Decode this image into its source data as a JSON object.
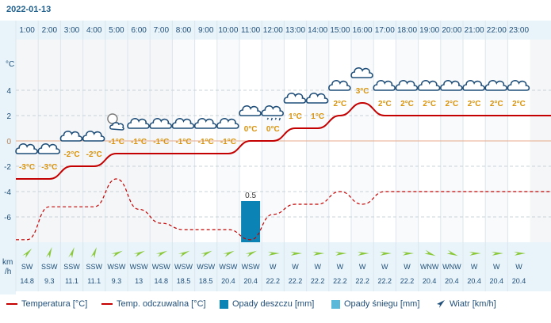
{
  "date": "2022-01-13",
  "y_unit": "°C",
  "wind_unit_top": "km",
  "wind_unit_bottom": "/h",
  "colors": {
    "temperature": "#c40000",
    "rain": "#0b84b5",
    "snow": "#5bb8d9",
    "wind_arrow": "#8cc83c",
    "header_bg": "#e8f4fa",
    "axis_text": "#1f4e79",
    "label_orange": "#d9930b"
  },
  "legend": {
    "temperature": "Temperatura [°C]",
    "feels_like": "Temp. odczuwalna [°C]",
    "rain": "Opady deszczu [mm]",
    "snow": "Opady śniegu [mm]",
    "wind": "Wiatr [km/h]"
  },
  "chart_data": {
    "type": "line",
    "x": [
      "1:00",
      "2:00",
      "3:00",
      "4:00",
      "5:00",
      "6:00",
      "7:00",
      "8:00",
      "9:00",
      "10:00",
      "11:00",
      "12:00",
      "13:00",
      "14:00",
      "15:00",
      "16:00",
      "17:00",
      "18:00",
      "19:00",
      "20:00",
      "21:00",
      "22:00",
      "23:00"
    ],
    "ylim": [
      -8,
      8
    ],
    "yticks": [
      4,
      2,
      0,
      -2,
      -4,
      -6
    ],
    "series": [
      {
        "key": "temperature",
        "values": [
          -3,
          -3,
          -2,
          -2,
          -1,
          -1,
          -1,
          -1,
          -1,
          -1,
          0,
          0,
          1,
          1,
          2,
          3,
          2,
          2,
          2,
          2,
          2,
          2,
          2
        ]
      },
      {
        "key": "feels_like",
        "values": [
          -7.8,
          -5.2,
          -5.2,
          -5.2,
          -3,
          -5.4,
          -6.5,
          -7,
          -7,
          -7,
          -7.8,
          -5.8,
          -5,
          -5,
          -4,
          -5,
          -4,
          -4,
          -4,
          -4,
          -4,
          -4,
          -4
        ]
      }
    ],
    "temperature_labels": [
      "-3°C",
      "-3°C",
      "-2°C",
      "-2°C",
      "-1°C",
      "-1°C",
      "-1°C",
      "-1°C",
      "-1°C",
      "-1°C",
      "0°C",
      "0°C",
      "1°C",
      "1°C",
      "2°C",
      "3°C",
      "2°C",
      "2°C",
      "2°C",
      "2°C",
      "2°C",
      "2°C",
      "2°C"
    ],
    "weather_icons": [
      "cloud-icon",
      "cloud-icon",
      "cloud-icon",
      "cloud-icon",
      "partly-cloudy-night-icon",
      "cloud-icon",
      "cloud-icon",
      "cloud-icon",
      "cloud-icon",
      "cloud-icon",
      "cloud-icon",
      "cloud-drizzle-icon",
      "cloud-icon",
      "cloud-icon",
      "cloud-icon",
      "cloud-icon",
      "cloud-icon",
      "cloud-icon",
      "cloud-icon",
      "cloud-icon",
      "cloud-icon",
      "cloud-icon",
      "cloud-icon"
    ],
    "rain": [
      0,
      0,
      0,
      0,
      0,
      0,
      0,
      0,
      0,
      0,
      0.5,
      0,
      0,
      0,
      0,
      0,
      0,
      0,
      0,
      0,
      0,
      0,
      0
    ],
    "rain_labels": [
      "",
      "",
      "",
      "",
      "",
      "",
      "",
      "",
      "",
      "",
      "0.5",
      "",
      "",
      "",
      "",
      "",
      "",
      "",
      "",
      "",
      "",
      "",
      ""
    ],
    "wind_dir": [
      "SW",
      "SSW",
      "SSW",
      "SSW",
      "WSW",
      "WSW",
      "WSW",
      "WSW",
      "WSW",
      "WSW",
      "WSW",
      "W",
      "W",
      "W",
      "W",
      "W",
      "W",
      "W",
      "WNW",
      "WNW",
      "W",
      "W",
      "W"
    ],
    "wind_speed": [
      "14.8",
      "9.3",
      "11.1",
      "11.1",
      "9.3",
      "13",
      "14.8",
      "18.5",
      "18.5",
      "20.4",
      "20.4",
      "22.2",
      "22.2",
      "22.2",
      "22.2",
      "22.2",
      "22.2",
      "22.2",
      "20.4",
      "20.4",
      "20.4",
      "20.4",
      "20.4"
    ]
  }
}
